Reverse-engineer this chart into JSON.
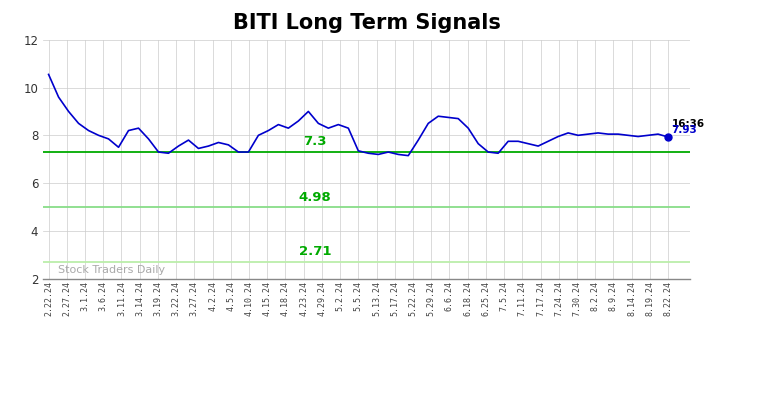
{
  "title": "BITI Long Term Signals",
  "title_fontsize": 15,
  "title_fontweight": "bold",
  "background_color": "#ffffff",
  "grid_color": "#cccccc",
  "line_color": "#0000cc",
  "line_width": 1.2,
  "hline1_value": 7.3,
  "hline1_color": "#00aa00",
  "hline1_label": "7.3",
  "hline2_value": 4.98,
  "hline2_color": "#88dd88",
  "hline2_label": "4.98",
  "hline3_value": 2.71,
  "hline3_color": "#bbeeaa",
  "hline3_label": "2.71",
  "last_label_time": "16:36",
  "last_label_value": "7.93",
  "last_point_color": "#0000cc",
  "watermark": "Stock Traders Daily",
  "watermark_color": "#aaaaaa",
  "ylim": [
    2,
    12
  ],
  "yticks": [
    2,
    4,
    6,
    8,
    10,
    12
  ],
  "x_labels": [
    "2.22.24",
    "2.27.24",
    "3.1.24",
    "3.6.24",
    "3.11.24",
    "3.14.24",
    "3.19.24",
    "3.22.24",
    "3.27.24",
    "4.2.24",
    "4.5.24",
    "4.10.24",
    "4.15.24",
    "4.18.24",
    "4.23.24",
    "4.29.24",
    "5.2.24",
    "5.5.24",
    "5.13.24",
    "5.17.24",
    "5.22.24",
    "5.29.24",
    "6.6.24",
    "6.18.24",
    "6.25.24",
    "7.5.24",
    "7.11.24",
    "7.17.24",
    "7.24.24",
    "7.30.24",
    "8.2.24",
    "8.9.24",
    "8.14.24",
    "8.19.24",
    "8.22.24"
  ],
  "y_values": [
    10.55,
    9.6,
    9.0,
    8.5,
    8.2,
    8.0,
    7.85,
    7.5,
    8.2,
    8.3,
    7.85,
    7.3,
    7.25,
    7.55,
    7.8,
    7.45,
    7.55,
    7.7,
    7.6,
    7.3,
    7.3,
    8.0,
    8.2,
    8.45,
    8.3,
    8.6,
    9.0,
    8.5,
    8.3,
    8.45,
    8.3,
    7.35,
    7.25,
    7.2,
    7.3,
    7.2,
    7.15,
    7.8,
    8.5,
    8.8,
    8.75,
    8.7,
    8.3,
    7.65,
    7.3,
    7.25,
    7.75,
    7.75,
    7.65,
    7.55,
    7.75,
    7.95,
    8.1,
    8.0,
    8.05,
    8.1,
    8.05,
    8.05,
    8.0,
    7.95,
    8.0,
    8.05,
    7.93
  ]
}
